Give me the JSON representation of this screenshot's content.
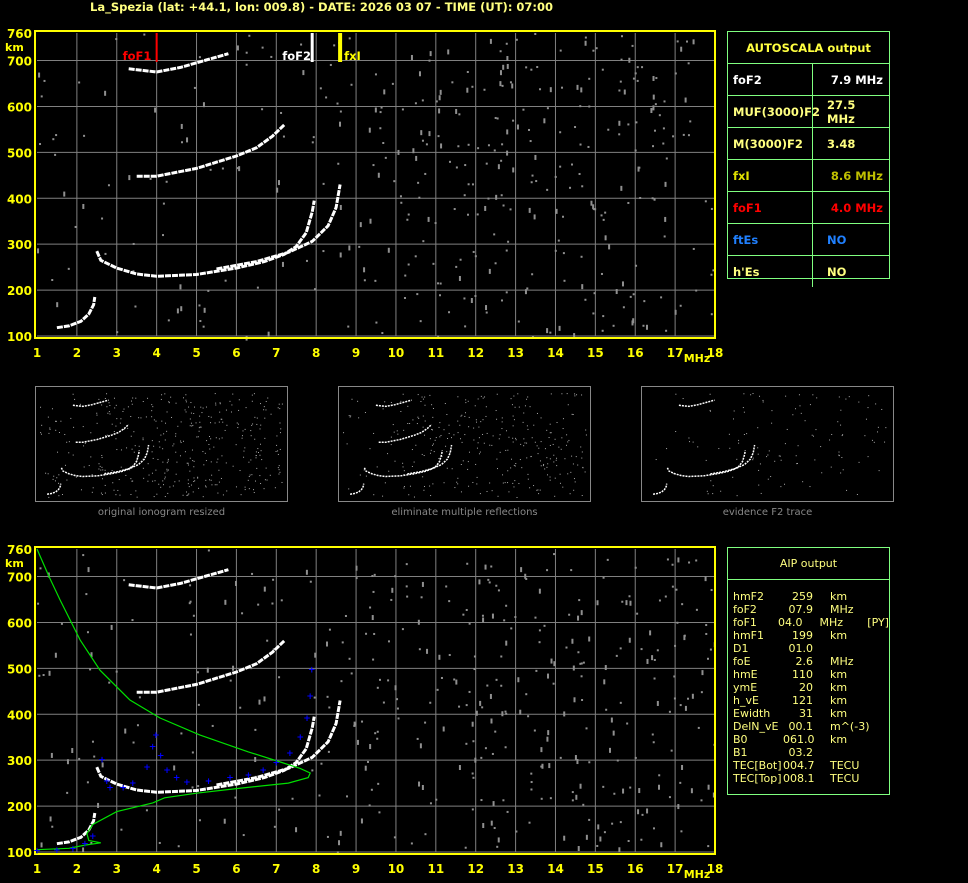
{
  "header": {
    "title": "La_Spezia (lat: +44.1, lon: 009.8) - DATE: 2026 03 07 - TIME (UT): 07:00"
  },
  "colors": {
    "axis": "#ffff00",
    "grid": "#808080",
    "trace": "#ffffff",
    "foF1": "#ff0000",
    "foF2": "#ffffff",
    "fxI": "#ffff00",
    "profile": "#00e000",
    "aip_points": "#0000ff",
    "table_border": "#80ff80",
    "noise": "#909090"
  },
  "autoscala": {
    "title": "AUTOSCALA output",
    "rows": [
      {
        "label": "foF2",
        "value": "7.9 MHz",
        "label_color": "#ffffff",
        "value_color": "#ffffff"
      },
      {
        "label": "MUF(3000)F2",
        "value": "27.5 MHz",
        "label_color": "#ffff80",
        "value_color": "#ffff80"
      },
      {
        "label": "M(3000)F2",
        "value": "3.48",
        "label_color": "#ffff80",
        "value_color": "#ffff80"
      },
      {
        "label": "fxI",
        "value": "8.6 MHz",
        "label_color": "#e0e000",
        "value_color": "#c0c000"
      },
      {
        "label": "foF1",
        "value": "4.0 MHz",
        "label_color": "#ff0000",
        "value_color": "#ff0000"
      },
      {
        "label": "ftEs",
        "value": "NO",
        "label_color": "#2080ff",
        "value_color": "#2080ff"
      },
      {
        "label": "h'Es",
        "value": "NO",
        "label_color": "#ffff80",
        "value_color": "#ffff80"
      }
    ]
  },
  "aip": {
    "title": "AIP output",
    "rows": [
      [
        "hmF2",
        "259",
        "km",
        ""
      ],
      [
        "foF2",
        "07.9",
        "MHz",
        ""
      ],
      [
        "foF1",
        "04.0",
        "MHz",
        "[PY]"
      ],
      [
        "hmF1",
        "199",
        "km",
        ""
      ],
      [
        "D1",
        "01.0",
        "",
        ""
      ],
      [
        "foE",
        "2.6",
        "MHz",
        ""
      ],
      [
        "hmE",
        "110",
        "km",
        ""
      ],
      [
        "ymE",
        "20",
        "km",
        ""
      ],
      [
        "h_vE",
        "121",
        "km",
        ""
      ],
      [
        "Ewidth",
        "31",
        "km",
        ""
      ],
      [
        "DelN_vE",
        "00.1",
        "m^(-3)",
        ""
      ],
      [
        "B0",
        "061.0",
        "km",
        ""
      ],
      [
        "B1",
        "03.2",
        "",
        ""
      ],
      [
        "TEC[Bot]",
        "004.7",
        "TECU",
        ""
      ],
      [
        "TEC[Top]",
        "008.1",
        "TECU",
        ""
      ]
    ]
  },
  "thumbnails": [
    {
      "caption": "original ionogram resized"
    },
    {
      "caption": "eliminate multiple reflections"
    },
    {
      "caption": "evidence F2 trace"
    }
  ],
  "chart_data": [
    {
      "type": "scatter",
      "title": "",
      "xlabel": "MHz",
      "ylabel": "km",
      "xlim": [
        1,
        18
      ],
      "ylim": [
        100,
        760
      ],
      "xticks": [
        "1",
        "2",
        "3",
        "4",
        "5",
        "6",
        "7",
        "8",
        "9",
        "10",
        "11",
        "12",
        "13",
        "14",
        "15",
        "16",
        "17",
        "18"
      ],
      "yticks": [
        "760",
        "700",
        "600",
        "500",
        "400",
        "300",
        "200",
        "100"
      ],
      "grid": true,
      "markers": [
        {
          "name": "foF1",
          "freq": 4.0
        },
        {
          "name": "foF2",
          "freq": 7.9
        },
        {
          "name": "fxI",
          "freq": 8.6
        }
      ],
      "traces": [
        {
          "points": [
            [
              1.5,
              118
            ],
            [
              1.8,
              122
            ],
            [
              2.1,
              132
            ],
            [
              2.3,
              148
            ],
            [
              2.42,
              168
            ],
            [
              2.45,
              185
            ]
          ]
        },
        {
          "points": [
            [
              2.5,
              285
            ],
            [
              2.6,
              265
            ],
            [
              3.0,
              248
            ],
            [
              3.5,
              235
            ],
            [
              4.0,
              230
            ],
            [
              5.0,
              234
            ],
            [
              6.0,
              248
            ],
            [
              6.7,
              262
            ],
            [
              7.2,
              278
            ],
            [
              7.5,
              295
            ],
            [
              7.75,
              325
            ],
            [
              7.9,
              370
            ],
            [
              7.95,
              395
            ]
          ]
        },
        {
          "points": [
            [
              5.5,
              246
            ],
            [
              6.5,
              262
            ],
            [
              7.3,
              282
            ],
            [
              7.9,
              306
            ],
            [
              8.3,
              340
            ],
            [
              8.5,
              380
            ],
            [
              8.6,
              430
            ]
          ]
        },
        {
          "points": [
            [
              3.5,
              448
            ],
            [
              4.0,
              448
            ],
            [
              5.0,
              465
            ],
            [
              6.0,
              492
            ],
            [
              6.5,
              510
            ],
            [
              6.9,
              535
            ],
            [
              7.2,
              560
            ]
          ]
        },
        {
          "points": [
            [
              3.3,
              682
            ],
            [
              4.0,
              675
            ],
            [
              4.6,
              685
            ],
            [
              5.2,
              700
            ],
            [
              5.8,
              715
            ]
          ]
        }
      ]
    },
    {
      "type": "scatter",
      "title": "",
      "xlabel": "MHz",
      "ylabel": "km",
      "xlim": [
        1,
        18
      ],
      "ylim": [
        100,
        760
      ],
      "xticks": [
        "1",
        "2",
        "3",
        "4",
        "5",
        "6",
        "7",
        "8",
        "9",
        "10",
        "11",
        "12",
        "13",
        "14",
        "15",
        "16",
        "17",
        "18"
      ],
      "yticks": [
        "760",
        "700",
        "600",
        "500",
        "400",
        "300",
        "200",
        "100"
      ],
      "grid": true,
      "profile": [
        [
          1.0,
          760
        ],
        [
          1.3,
          700
        ],
        [
          1.58,
          649
        ],
        [
          2.08,
          562
        ],
        [
          2.58,
          496
        ],
        [
          3.33,
          431
        ],
        [
          4.08,
          392
        ],
        [
          5.08,
          355
        ],
        [
          6.3,
          318
        ],
        [
          7.1,
          296
        ],
        [
          7.6,
          282
        ],
        [
          7.85,
          272
        ],
        [
          7.8,
          262
        ],
        [
          7.3,
          250
        ],
        [
          6.0,
          238
        ],
        [
          5.0,
          228
        ],
        [
          4.2,
          218
        ],
        [
          3.9,
          207
        ],
        [
          3.0,
          188
        ],
        [
          2.4,
          160
        ],
        [
          2.25,
          140
        ],
        [
          2.3,
          125
        ],
        [
          2.6,
          120
        ],
        [
          2.2,
          115
        ],
        [
          1.8,
          108
        ],
        [
          1.0,
          105
        ]
      ],
      "aip_points": [
        [
          1.0,
          103
        ],
        [
          1.5,
          104
        ],
        [
          1.9,
          108
        ],
        [
          2.2,
          118
        ],
        [
          2.4,
          135
        ],
        [
          2.63,
          302
        ],
        [
          2.75,
          255
        ],
        [
          2.83,
          241
        ],
        [
          3.16,
          240
        ],
        [
          3.4,
          250
        ],
        [
          3.76,
          285
        ],
        [
          3.9,
          330
        ],
        [
          3.98,
          355
        ],
        [
          4.1,
          310
        ],
        [
          4.26,
          279
        ],
        [
          4.5,
          262
        ],
        [
          4.76,
          253
        ],
        [
          5.3,
          255
        ],
        [
          5.84,
          262
        ],
        [
          6.3,
          268
        ],
        [
          6.67,
          279
        ],
        [
          7.0,
          295
        ],
        [
          7.34,
          316
        ],
        [
          7.6,
          350
        ],
        [
          7.77,
          392
        ],
        [
          7.85,
          440
        ],
        [
          7.89,
          498
        ]
      ]
    }
  ]
}
